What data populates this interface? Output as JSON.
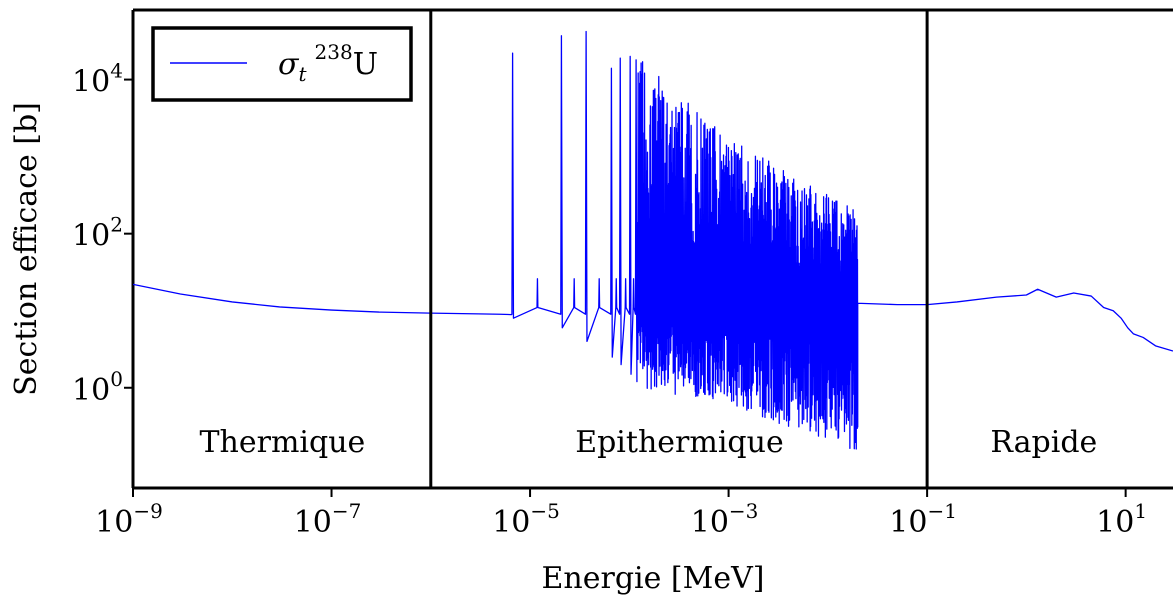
{
  "chart_data": {
    "type": "line",
    "xlabel": "Energie [MeV]",
    "ylabel": "Section efficace [b]",
    "x_scale": "log",
    "y_scale": "log",
    "xlim": [
      1e-09,
      30
    ],
    "ylim": [
      0.05,
      80000
    ],
    "grid": false,
    "legend_position": "top-left",
    "line_color": "#0000ff",
    "x_ticks": [
      {
        "value": 1e-09,
        "base": "10",
        "exp": "−9"
      },
      {
        "value": 1e-07,
        "base": "10",
        "exp": "−7"
      },
      {
        "value": 1e-05,
        "base": "10",
        "exp": "−5"
      },
      {
        "value": 0.001,
        "base": "10",
        "exp": "−3"
      },
      {
        "value": 0.1,
        "base": "10",
        "exp": "−1"
      },
      {
        "value": 10,
        "base": "10",
        "exp": "1"
      }
    ],
    "y_ticks": [
      {
        "value": 1,
        "base": "10",
        "exp": "0"
      },
      {
        "value": 100,
        "base": "10",
        "exp": "2"
      },
      {
        "value": 10000,
        "base": "10",
        "exp": "4"
      }
    ],
    "region_boundaries": [
      1e-06,
      0.1
    ],
    "regions": [
      {
        "label": "Thermique",
        "x_center": 3.2e-08
      },
      {
        "label": "Epithermique",
        "x_center": 0.00032
      },
      {
        "label": "Rapide",
        "x_center": 1.5
      }
    ],
    "series": [
      {
        "name_symbol": "σ",
        "name_sub": "t",
        "name_sup": "238",
        "name_element": "U",
        "points": [
          [
            1e-09,
            22
          ],
          [
            3e-09,
            16.5
          ],
          [
            1e-08,
            13
          ],
          [
            3e-08,
            11.2
          ],
          [
            1e-07,
            10.2
          ],
          [
            3e-07,
            9.6
          ],
          [
            1e-06,
            9.3
          ],
          [
            3e-06,
            9.1
          ],
          [
            5e-06,
            9.0
          ],
          [
            6.5e-06,
            8.9
          ],
          [
            8e-06,
            12
          ]
        ],
        "resonance_peaks": [
          {
            "energy": 6.67e-06,
            "peak": 22000,
            "dip": 8.0
          },
          {
            "energy": 2.07e-05,
            "peak": 37000,
            "dip": 6.0
          },
          {
            "energy": 3.67e-05,
            "peak": 42000,
            "dip": 4.0
          },
          {
            "energy": 6.6e-05,
            "peak": 14000,
            "dip": 2.5
          },
          {
            "energy": 8.1e-05,
            "peak": 19000,
            "dip": 2.0
          },
          {
            "energy": 0.000102,
            "peak": 20000,
            "dip": 1.5
          },
          {
            "energy": 0.000117,
            "peak": 18000,
            "dip": 1.2
          }
        ],
        "unresolved_band": {
          "x_range": [
            0.00012,
            0.02
          ],
          "upper_envelope": [
            [
              0.00012,
              20000
            ],
            [
              0.001,
              1800
            ],
            [
              0.02,
              200
            ]
          ],
          "lower_envelope": [
            [
              0.00012,
              1.0
            ],
            [
              0.001,
              0.6
            ],
            [
              0.01,
              0.2
            ],
            [
              0.02,
              0.15
            ]
          ],
          "baseline": 13
        },
        "fast_points": [
          [
            0.02,
            12.5
          ],
          [
            0.05,
            12
          ],
          [
            0.1,
            12
          ],
          [
            0.2,
            13
          ],
          [
            0.5,
            15
          ],
          [
            1,
            16
          ],
          [
            1.3,
            19
          ],
          [
            2,
            15
          ],
          [
            3,
            17
          ],
          [
            4.5,
            15.5
          ],
          [
            6,
            11
          ],
          [
            7.5,
            10
          ],
          [
            9,
            8
          ],
          [
            10.5,
            6
          ],
          [
            12,
            5
          ],
          [
            15,
            4.5
          ],
          [
            20,
            3.5
          ],
          [
            30,
            3
          ]
        ]
      }
    ]
  }
}
